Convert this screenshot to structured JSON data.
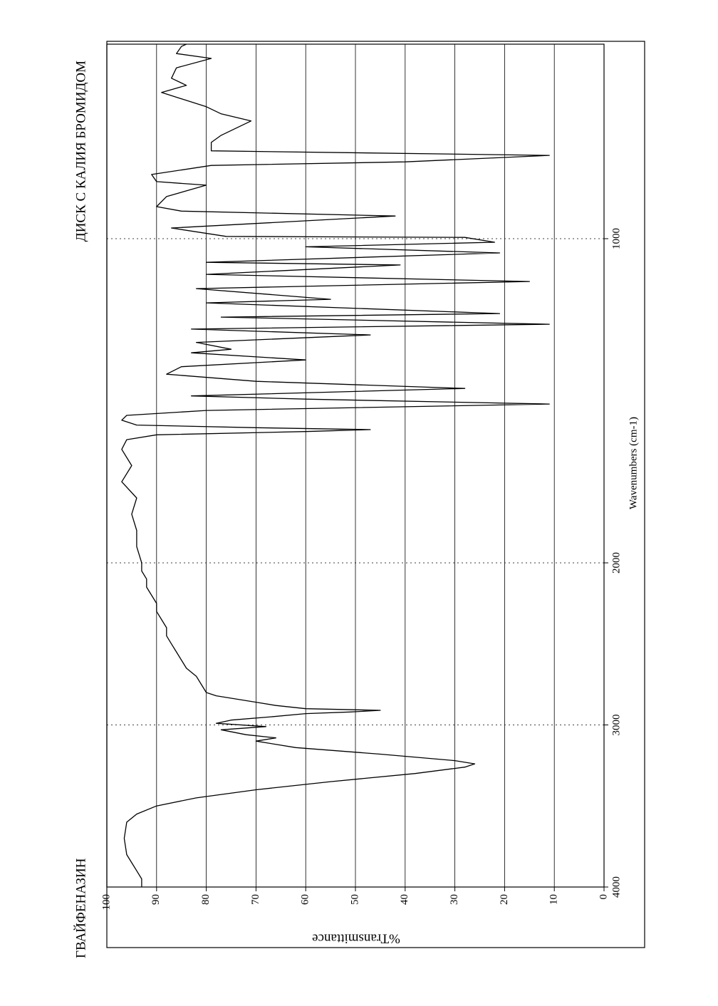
{
  "chart_data": {
    "type": "line",
    "title": "ГВАЙФЕНАЗИН",
    "subtitle": "ДИСК С КАЛИЯ БРОМИДОМ",
    "x_label": "Wavenumbers (cm-1)",
    "y_label": "%Transmittance",
    "xlim": [
      4000,
      400
    ],
    "ylim": [
      0,
      100
    ],
    "xticks": [
      4000,
      3000,
      2000,
      1000
    ],
    "yticks": [
      0,
      10,
      20,
      30,
      40,
      50,
      60,
      70,
      80,
      90,
      100
    ],
    "xscale": {
      "break": 2000,
      "factor": 2
    },
    "grid": true,
    "color": "#000000",
    "x": [
      4000,
      3950,
      3900,
      3850,
      3800,
      3700,
      3600,
      3550,
      3500,
      3450,
      3400,
      3350,
      3300,
      3260,
      3240,
      3220,
      3180,
      3140,
      3100,
      3080,
      3060,
      3030,
      3010,
      2990,
      2970,
      2950,
      2930,
      2920,
      2910,
      2900,
      2880,
      2860,
      2840,
      2820,
      2800,
      2750,
      2700,
      2650,
      2600,
      2550,
      2500,
      2450,
      2400,
      2350,
      2300,
      2250,
      2200,
      2150,
      2100,
      2050,
      2000,
      1950,
      1900,
      1850,
      1800,
      1750,
      1700,
      1650,
      1620,
      1605,
      1595,
      1589,
      1583,
      1575,
      1560,
      1545,
      1530,
      1510,
      1495,
      1485,
      1462,
      1440,
      1418,
      1395,
      1374,
      1352,
      1341,
      1320,
      1297,
      1279,
      1264,
      1242,
      1231,
      1198,
      1187,
      1154,
      1132,
      1110,
      1081,
      1073,
      1044,
      1025,
      1011,
      996,
      993,
      967,
      930,
      915,
      901,
      870,
      835,
      824,
      802,
      774,
      763,
      743,
      729,
      703,
      681,
      637,
      615,
      593,
      549,
      527,
      505,
      473,
      444,
      429,
      407,
      400
    ],
    "values": [
      93,
      93,
      94,
      95,
      96,
      96.5,
      96,
      94,
      90,
      82,
      70,
      55,
      38,
      28,
      26,
      30,
      45,
      62,
      70,
      66,
      72,
      77,
      68,
      78,
      75,
      67,
      60,
      51,
      45,
      60,
      66,
      70,
      74,
      78,
      80,
      81,
      82,
      84,
      85,
      86,
      87,
      88,
      88,
      89,
      90,
      90,
      91,
      92,
      92,
      93,
      93,
      94,
      94,
      95,
      94,
      97,
      95,
      97,
      96,
      90,
      60,
      47,
      70,
      94,
      97,
      96,
      80,
      11,
      60,
      83,
      28,
      70,
      88,
      85,
      60,
      83,
      75,
      82,
      47,
      83,
      11,
      77,
      21,
      80,
      55,
      82,
      15,
      80,
      41,
      80,
      21,
      60,
      22,
      28,
      76,
      87,
      42,
      85,
      90,
      88,
      80,
      90,
      91,
      79,
      40,
      11,
      79,
      79,
      77,
      71,
      77,
      80,
      89,
      84,
      87,
      86,
      79,
      86,
      85,
      84
    ]
  }
}
